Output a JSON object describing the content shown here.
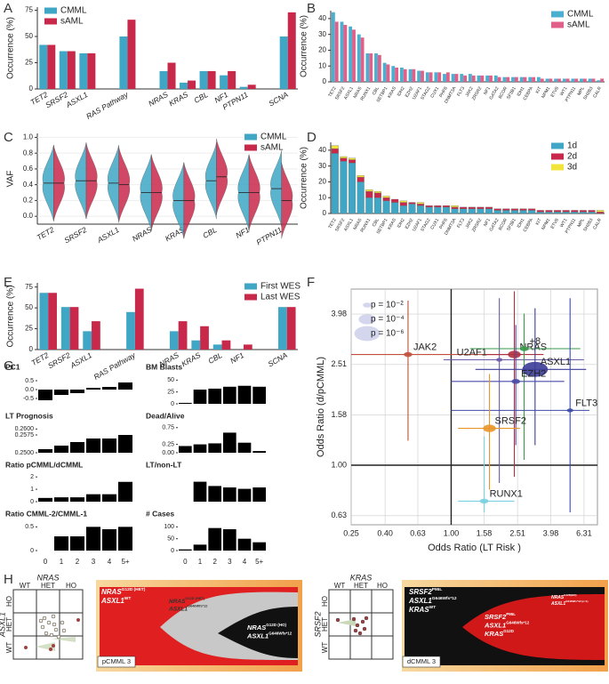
{
  "chart_data": [
    {
      "type": "bar",
      "panel": "A",
      "y_label": "Occurrence (%)",
      "legend": "top-left",
      "categories": [
        "TET2",
        "SRSF2",
        "ASXL1",
        null,
        "RAS Pathway",
        null,
        "NRAS",
        "KRAS",
        "CBL",
        "NF1",
        "PTPN11",
        null,
        "SCNA"
      ],
      "series": [
        {
          "name": "CMML",
          "color": "#3fa7c5",
          "values": [
            42,
            36,
            34,
            null,
            50,
            null,
            17,
            6,
            17,
            13,
            2,
            null,
            50
          ]
        },
        {
          "name": "sAML",
          "color": "#c8294b",
          "values": [
            42,
            36,
            34,
            null,
            66,
            null,
            25,
            8,
            17,
            17,
            4,
            null,
            73
          ]
        }
      ],
      "ylim": [
        0,
        78
      ],
      "yticks": [
        0,
        25,
        50,
        75
      ]
    },
    {
      "type": "bar",
      "panel": "B",
      "y_label": "Occurrence (%)",
      "legend": "top-right",
      "categories": [
        "TET2",
        "SRSF2",
        "ASXL1",
        "NRAS",
        "RUNX1",
        "CBL",
        "SETBP1",
        "KRAS",
        "IDH2",
        "EZH2",
        "U2AF1",
        "STAG2",
        "CUX1",
        "PHF6",
        "DNMT3A",
        "FLT3",
        "JAK2",
        "ZRSR2",
        "NF1",
        "GATA2",
        "BCOR",
        "SF3B1",
        "IDH1",
        "CEBPA",
        "KIT",
        "NPM1",
        "ETV6",
        "WT1",
        "PTPN11",
        "MPL",
        "SH2B3",
        "CALR"
      ],
      "series": [
        {
          "name": "CMML",
          "color": "#4bb0d0",
          "values": [
            44,
            38,
            35,
            30,
            18,
            18,
            12,
            10,
            9,
            8,
            7,
            6,
            6,
            5,
            5,
            5,
            5,
            4,
            4,
            4,
            3,
            3,
            3,
            3,
            3,
            2,
            2,
            2,
            2,
            2,
            2,
            1
          ]
        },
        {
          "name": "sAML",
          "color": "#e0608a",
          "values": [
            38,
            36,
            33,
            28,
            18,
            17,
            11,
            9,
            8,
            8,
            7,
            6,
            6,
            6,
            5,
            4,
            4,
            4,
            4,
            3,
            3,
            3,
            3,
            3,
            2,
            2,
            2,
            2,
            2,
            2,
            2,
            2
          ]
        }
      ],
      "ylim": [
        0,
        45
      ],
      "yticks": [
        0,
        10,
        20,
        30,
        40
      ]
    },
    {
      "type": "violin",
      "panel": "C",
      "y_label": "VAF",
      "legend": "top-right",
      "categories": [
        "TET2",
        "SRSF2",
        "ASXL1",
        "NRAS",
        "KRAS",
        "CBL",
        "NF1",
        "PTPN11"
      ],
      "series": [
        {
          "name": "CMML",
          "color": "#3fa7c5",
          "values": [
            0.42,
            0.45,
            0.42,
            0.3,
            0.2,
            0.45,
            0.3,
            0.35
          ]
        },
        {
          "name": "sAML",
          "color": "#c8294b",
          "values": [
            0.42,
            0.45,
            0.4,
            0.3,
            0.2,
            0.5,
            0.3,
            0.2
          ]
        }
      ],
      "ylim": [
        -0.1,
        1.05
      ],
      "yticks": [
        {
          "value": 0,
          "label": "0.0"
        },
        0.2,
        0.4,
        0.6,
        0.8,
        {
          "value": 1,
          "label": "1.0"
        }
      ]
    },
    {
      "type": "stacked-bar",
      "panel": "D",
      "y_label": "Occurrence (%)",
      "legend": "top-right",
      "categories": [
        "TET2",
        "SRSF2",
        "ASXL1",
        "NRAS",
        "RUNX1",
        "CBL",
        "SETBP1",
        "KRAS",
        "IDH2",
        "EZH2",
        "U2AF1",
        "STAG2",
        "CUX1",
        "PHF6",
        "DNMT3A",
        "FLT3",
        "JAK2",
        "ZRSR2",
        "NF1",
        "GATA2",
        "BCOR",
        "SF3B1",
        "IDH1",
        "CEBPA",
        "KIT",
        "NPM1",
        "ETV6",
        "WT1",
        "PTPN11",
        "MPL",
        "SH2B3",
        "CALR"
      ],
      "series": [
        {
          "name": "1d",
          "color": "#3fa7c5",
          "values": [
            38,
            33,
            32,
            20,
            10,
            10,
            8,
            7,
            5,
            6,
            5,
            4,
            4,
            4,
            3,
            3,
            3,
            3,
            3,
            2,
            2,
            2,
            2,
            2,
            1,
            1,
            1,
            1,
            1,
            1,
            1,
            0
          ]
        },
        {
          "name": "2d",
          "color": "#c8294b",
          "values": [
            3,
            2,
            2,
            3,
            4,
            3,
            2,
            2,
            2,
            1,
            1,
            1,
            1,
            1,
            1,
            1,
            1,
            1,
            1,
            1,
            1,
            1,
            1,
            1,
            1,
            1,
            1,
            1,
            1,
            1,
            1,
            1
          ]
        },
        {
          "name": "3d",
          "color": "#f2e43a",
          "values": [
            2,
            1,
            1,
            1,
            1,
            1,
            1,
            0,
            1,
            0,
            1,
            0,
            0,
            0,
            1,
            0,
            0,
            0,
            0,
            0,
            0,
            0,
            0,
            0,
            0,
            0,
            0,
            0,
            0,
            0,
            0,
            1
          ]
        }
      ],
      "ylim": [
        0,
        45
      ],
      "yticks": [
        0,
        10,
        20,
        30,
        40
      ]
    },
    {
      "type": "bar",
      "panel": "E",
      "y_label": "Occurrence (%)",
      "legend": "top-right",
      "categories": [
        "TET2",
        "SRSF2",
        "ASXL1",
        null,
        "RAS Pathway",
        null,
        "NRAS",
        "KRAS",
        "CBL",
        "NF1",
        null,
        "SCNA"
      ],
      "series": [
        {
          "name": "First WES",
          "color": "#3fa7c5",
          "values": [
            68,
            51,
            22,
            null,
            45,
            null,
            22,
            11,
            6,
            0,
            null,
            51
          ]
        },
        {
          "name": "Last WES",
          "color": "#c8294b",
          "values": [
            68,
            51,
            34,
            null,
            73,
            null,
            34,
            28,
            11,
            6,
            null,
            51
          ]
        }
      ],
      "ylim": [
        0,
        80
      ],
      "yticks": [
        0,
        25,
        50,
        75
      ]
    },
    {
      "type": "scatter",
      "panel": "F",
      "x_label": "Odds Ratio (LT Risk )",
      "y_label": "Odds Ratio (d/pCMML)",
      "log_scale": true,
      "grid": true,
      "xlim": [
        0.25,
        7.6
      ],
      "ylim": [
        0.58,
        5
      ],
      "xticks": [
        0.25,
        {
          "value": 0.4,
          "label": "0.40"
        },
        0.63,
        {
          "value": 1,
          "label": "1.00"
        },
        1.58,
        2.51,
        3.98,
        6.31
      ],
      "yticks": [
        0.63,
        {
          "value": 1,
          "label": "1.00"
        },
        1.58,
        2.51,
        3.98
      ],
      "reference_x": 1,
      "reference_y": 1,
      "size_legend": [
        {
          "label": "p = 10⁻²",
          "size": 2
        },
        {
          "label": "p = 10⁻⁴",
          "size": 4
        },
        {
          "label": "p = 10⁻⁶",
          "size": 6
        }
      ],
      "points": {
        "labels": [
          "JAK2",
          "U2AF1",
          "NRAS",
          "+8",
          "ASXL1",
          "EZH2",
          "FLT3",
          "SRSF2",
          "RUNX1"
        ],
        "colors": [
          "#c0503c",
          "#6a5aa8",
          "#b03040",
          "#3a9a4a",
          "#3d3d99",
          "#4a4aa8",
          "#3d4aa8",
          "#e8962a",
          "#7ad0e0"
        ],
        "x": [
          0.55,
          1.95,
          2.4,
          2.75,
          3.2,
          2.45,
          5.2,
          1.7,
          1.58
        ],
        "y": [
          2.75,
          2.62,
          2.75,
          2.9,
          2.4,
          2.15,
          1.65,
          1.4,
          0.72
        ],
        "size": [
          2,
          1.5,
          3,
          2,
          6,
          2,
          1.5,
          3,
          2
        ],
        "x_lo": [
          0.25,
          0.9,
          1.6,
          1.3,
          1.4,
          1.0,
          1.0,
          1.1,
          1.1
        ],
        "x_hi": [
          2.6,
          6.3,
          3.6,
          6.0,
          6.5,
          4.8,
          6.8,
          2.6,
          2.4
        ],
        "y_lo": [
          1.25,
          0.85,
          0.9,
          1.05,
          1.2,
          1.2,
          0.65,
          0.8,
          0.65
        ],
        "y_hi": [
          4.5,
          4.6,
          4.9,
          4.0,
          4.2,
          3.6,
          4.6,
          2.3,
          1.3
        ]
      }
    },
    {
      "type": "bar-multiples",
      "panel": "G",
      "color": "#000000",
      "categories": [
        "0",
        "1",
        "2",
        "3",
        "4",
        "5+"
      ],
      "panels": [
        {
          "title": "PC1",
          "values": [
            -0.6,
            -0.3,
            -0.2,
            0.1,
            0.15,
            0.4
          ],
          "ylim": [
            -0.8,
            0.8
          ],
          "yticks": [
            -0.5,
            {
              "value": 0,
              "label": "0.0"
            },
            0.5
          ]
        },
        {
          "title": "BM Blasts",
          "values": [
            2,
            30,
            32,
            36,
            38,
            36
          ],
          "ylim": [
            0,
            60
          ],
          "yticks": [
            0,
            25,
            50
          ]
        },
        {
          "title": "LT Prognosis",
          "values": [
            0.2515,
            0.253,
            0.2545,
            0.256,
            0.256,
            0.2575
          ],
          "ylim": [
            0.25,
            0.262
          ],
          "yticks": [
            {
              "value": 0.25,
              "label": "0.2500"
            },
            0.2575,
            {
              "value": 0.26,
              "label": "0.2600"
            }
          ]
        },
        {
          "title": "Dead/Alive",
          "values": [
            0.2,
            0.25,
            0.28,
            0.6,
            0.3,
            0.05
          ],
          "ylim": [
            0,
            0.85
          ],
          "yticks": [
            {
              "value": 0,
              "label": "0.00"
            },
            0.25,
            0.75
          ]
        },
        {
          "title": "Ratio pCMML/dCMML",
          "values": [
            0.3,
            0.35,
            0.35,
            0.6,
            0.6,
            1.6
          ],
          "ylim": [
            0,
            2.3
          ],
          "yticks": [
            0,
            1,
            2
          ]
        },
        {
          "title": "LT/non-LT",
          "values": [
            0,
            0.7,
            0.55,
            0.5,
            0.45,
            0.5
          ],
          "ylim": [
            0,
            1
          ],
          "yticks": []
        },
        {
          "title": "Ratio CMML-2/CMML-1",
          "values": [
            0,
            0.3,
            0.3,
            0.5,
            0.45,
            0.5
          ],
          "ylim": [
            0,
            0.6
          ],
          "yticks": [
            0,
            0.5
          ]
        },
        {
          "title": "# Cases",
          "values": [
            5,
            25,
            95,
            90,
            50,
            35
          ],
          "ylim": [
            0,
            120
          ],
          "yticks": [
            0,
            50,
            100
          ]
        }
      ]
    }
  ],
  "panel_h": {
    "panel": "H",
    "left": {
      "col_gene": "NRAS",
      "row_gene": "ASXL1",
      "cols": [
        "WT",
        "HET",
        "HO"
      ],
      "rows": [
        "HO",
        "HET",
        "WT"
      ],
      "sample": "pCMML 3",
      "clones": [
        [
          {
            "gene": "NRAS",
            "sup": "G12D (HET)"
          },
          {
            "gene": "ASXL1",
            "sup": "WT"
          }
        ],
        [
          {
            "gene": "NRAS",
            "sup": "G12D (HET)"
          },
          {
            "gene": "ASXL1",
            "sup": "G646Wfs*12"
          }
        ],
        [
          {
            "gene": "NRAS",
            "sup": "G12D (HO)"
          },
          {
            "gene": "ASXL1",
            "sup": "G646Wfs*12"
          }
        ]
      ]
    },
    "right": {
      "col_gene": "KRAS",
      "row_gene": "SRSF2",
      "cols": [
        "WT",
        "HET",
        "HO"
      ],
      "rows": [
        "HO",
        "HET",
        "WT"
      ],
      "sample": "dCMML 3",
      "clones": [
        [
          {
            "gene": "SRSF2",
            "sup": "P95L"
          },
          {
            "gene": "ASXL1",
            "sup": "G646Wfs*12"
          },
          {
            "gene": "KRAS",
            "sup": "WT"
          }
        ],
        [
          {
            "gene": "SRSF2",
            "sup": "P95L"
          },
          {
            "gene": "ASXL1",
            "sup": "G646Wfs*12"
          },
          {
            "gene": "KRAS",
            "sup": "G12D"
          }
        ],
        [
          {
            "gene": "NRAS",
            "sup": "G12D(HO)"
          },
          {
            "gene": "ASXL1",
            "sup": "G646Wfs*12 (n=1)"
          }
        ]
      ]
    }
  }
}
